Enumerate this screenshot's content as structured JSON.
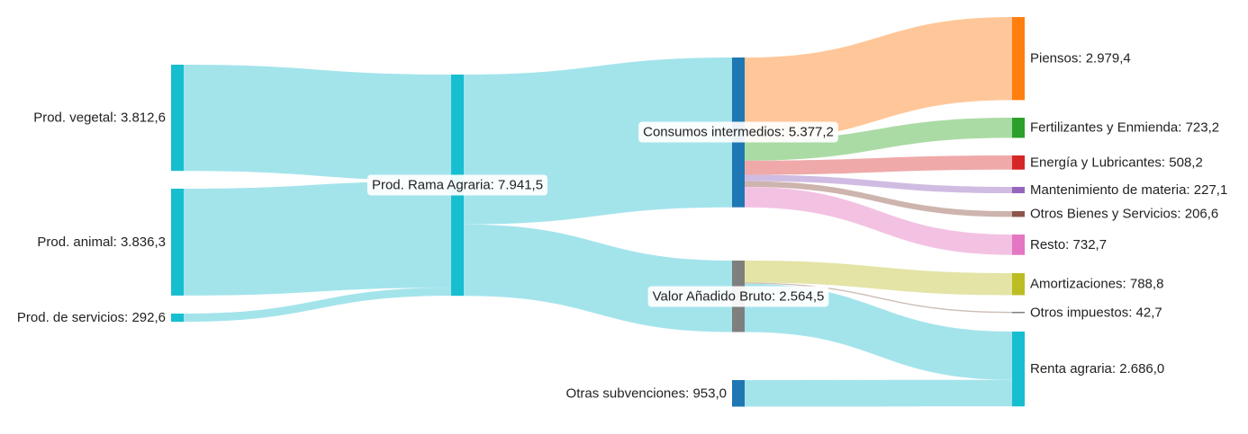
{
  "nodes": [
    {
      "id": "vegetal",
      "label": "Prod. vegetal: 3.812,6",
      "value": 3812.6,
      "color": "#17becf"
    },
    {
      "id": "animal",
      "label": "Prod. animal: 3.836,3",
      "value": 3836.3,
      "color": "#17becf"
    },
    {
      "id": "servicios",
      "label": "Prod. de servicios: 292,6",
      "value": 292.6,
      "color": "#17becf"
    },
    {
      "id": "rama",
      "label": "Prod. Rama Agraria: 7.941,5",
      "value": 7941.5,
      "color": "#17becf"
    },
    {
      "id": "consumos",
      "label": "Consumos intermedios: 5.377,2",
      "value": 5377.2,
      "color": "#1f77b4"
    },
    {
      "id": "vab",
      "label": "Valor Añadido Bruto: 2.564,5",
      "value": 2564.5,
      "color": "#7f7f7f"
    },
    {
      "id": "subvenciones",
      "label": "Otras subvenciones: 953,0",
      "value": 953.0,
      "color": "#1f77b4"
    },
    {
      "id": "piensos",
      "label": "Piensos: 2.979,4",
      "value": 2979.4,
      "color": "#ff7f0e"
    },
    {
      "id": "fertilizantes",
      "label": "Fertilizantes y Enmienda: 723,2",
      "value": 723.2,
      "color": "#2ca02c"
    },
    {
      "id": "energia",
      "label": "Energía y Lubricantes: 508,2",
      "value": 508.2,
      "color": "#d62728"
    },
    {
      "id": "mantenimiento",
      "label": "Mantenimiento de materia: 227,1",
      "value": 227.1,
      "color": "#9467bd"
    },
    {
      "id": "otros_bienes",
      "label": "Otros Bienes y Servicios: 206,6",
      "value": 206.6,
      "color": "#8c564b"
    },
    {
      "id": "resto",
      "label": "Resto: 732,7",
      "value": 732.7,
      "color": "#e377c2"
    },
    {
      "id": "amortizaciones",
      "label": "Amortizaciones: 788,8",
      "value": 788.8,
      "color": "#bcbd22"
    },
    {
      "id": "otros_impuestos",
      "label": "Otros impuestos: 42,7",
      "value": 42.7,
      "color": "#7f7f7f"
    },
    {
      "id": "renta",
      "label": "Renta agraria: 2.686,0",
      "value": 2686.0,
      "color": "#17becf"
    }
  ],
  "links": [
    {
      "source": "vegetal",
      "target": "rama",
      "value": 3812.6,
      "color": "#9ee3ea"
    },
    {
      "source": "animal",
      "target": "rama",
      "value": 3836.3,
      "color": "#9ee3ea"
    },
    {
      "source": "servicios",
      "target": "rama",
      "value": 292.6,
      "color": "#9ee3ea"
    },
    {
      "source": "rama",
      "target": "consumos",
      "value": 5377.2,
      "color": "#9ee3ea"
    },
    {
      "source": "rama",
      "target": "vab",
      "value": 2564.5,
      "color": "#9ee3ea"
    },
    {
      "source": "consumos",
      "target": "piensos",
      "value": 2979.4,
      "color": "#ffc494"
    },
    {
      "source": "consumos",
      "target": "fertilizantes",
      "value": 723.2,
      "color": "#a6d9a0"
    },
    {
      "source": "consumos",
      "target": "energia",
      "value": 508.2,
      "color": "#eea4a4"
    },
    {
      "source": "consumos",
      "target": "mantenimiento",
      "value": 227.1,
      "color": "#cdb8e0"
    },
    {
      "source": "consumos",
      "target": "otros_bienes",
      "value": 206.6,
      "color": "#cbb0aa"
    },
    {
      "source": "consumos",
      "target": "resto",
      "value": 732.7,
      "color": "#f2bfe2"
    },
    {
      "source": "vab",
      "target": "amortizaciones",
      "value": 788.8,
      "color": "#e2e3a0"
    },
    {
      "source": "vab",
      "target": "otros_impuestos",
      "value": 42.7,
      "color": "#c9b8b0"
    },
    {
      "source": "vab",
      "target": "renta",
      "value": 1733.0,
      "color": "#9ee3ea"
    },
    {
      "source": "subvenciones",
      "target": "renta",
      "value": 953.0,
      "color": "#9ee3ea"
    }
  ]
}
